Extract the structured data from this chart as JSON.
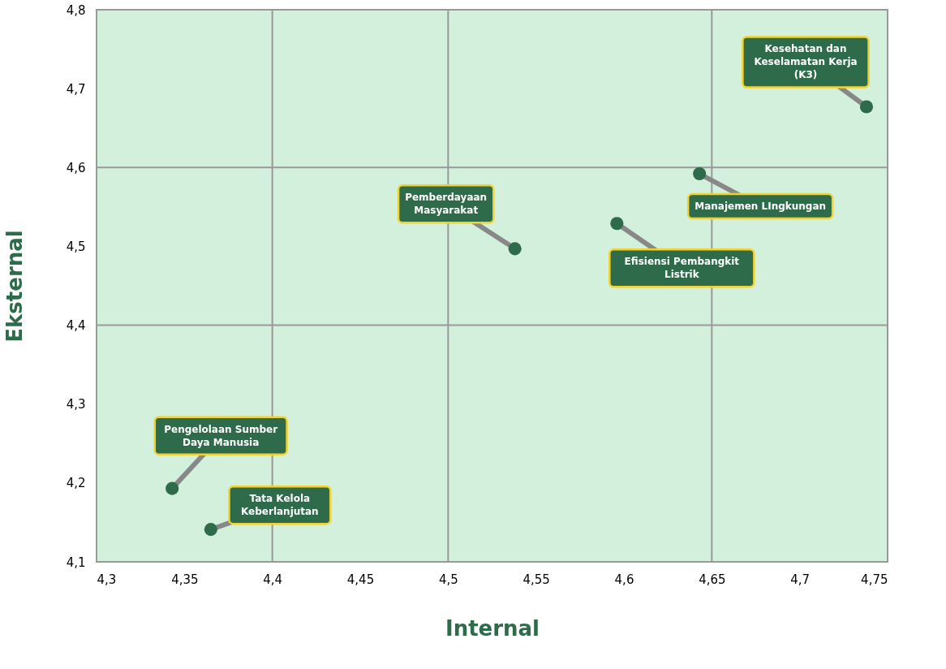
{
  "chart_data": {
    "type": "scatter",
    "xlabel": "Internal",
    "ylabel": "Eksternal",
    "x": [
      4.738,
      4.643,
      4.596,
      4.538,
      4.343,
      4.365
    ],
    "values": [
      4.677,
      4.592,
      4.529,
      4.497,
      4.193,
      4.141
    ],
    "color": "#2e6b4a",
    "marker": "circle",
    "xlim": [
      4.3,
      4.75
    ],
    "ylim": [
      4.1,
      4.8
    ],
    "xticks": [
      {
        "value": 4.3,
        "label": "4,3"
      },
      {
        "value": 4.35,
        "label": "4,35"
      },
      {
        "value": 4.4,
        "label": "4,4"
      },
      {
        "value": 4.45,
        "label": "4,45"
      },
      {
        "value": 4.5,
        "label": "4,5"
      },
      {
        "value": 4.55,
        "label": "4,55"
      },
      {
        "value": 4.6,
        "label": "4,6"
      },
      {
        "value": 4.65,
        "label": "4,65"
      },
      {
        "value": 4.7,
        "label": "4,7"
      },
      {
        "value": 4.75,
        "label": "4,75"
      }
    ],
    "yticks": [
      {
        "value": 4.1,
        "label": "4,1"
      },
      {
        "value": 4.2,
        "label": "4,2"
      },
      {
        "value": 4.3,
        "label": "4,3"
      },
      {
        "value": 4.4,
        "label": "4,4"
      },
      {
        "value": 4.5,
        "label": "4,5"
      },
      {
        "value": 4.6,
        "label": "4,6"
      },
      {
        "value": 4.7,
        "label": "4,7"
      },
      {
        "value": 4.8,
        "label": "4,8"
      }
    ],
    "ref_lines": [
      {
        "axis": "x",
        "value": 4.4,
        "color": "#999999"
      },
      {
        "axis": "x",
        "value": 4.5,
        "color": "#999999"
      },
      {
        "axis": "x",
        "value": 4.65,
        "color": "#999999"
      },
      {
        "axis": "y",
        "value": 4.4,
        "color": "#999999"
      },
      {
        "axis": "y",
        "value": 4.6,
        "color": "#999999"
      }
    ],
    "annotations": [
      {
        "text": "Kesehatan dan Keselamatan Kerja (K3)",
        "x": 4.738,
        "y": 4.677
      },
      {
        "text": "Manajemen LIngkungan",
        "x": 4.643,
        "y": 4.592
      },
      {
        "text": "Efisiensi Pembangkit Listrik",
        "x": 4.596,
        "y": 4.529
      },
      {
        "text": "Pemberdayaan Masyarakat",
        "x": 4.538,
        "y": 4.497
      },
      {
        "text": "Pengelolaan Sumber Daya Manusia",
        "x": 4.343,
        "y": 4.193
      },
      {
        "text": "Tata Kelola Keberlanjutan",
        "x": 4.365,
        "y": 4.141
      }
    ]
  }
}
